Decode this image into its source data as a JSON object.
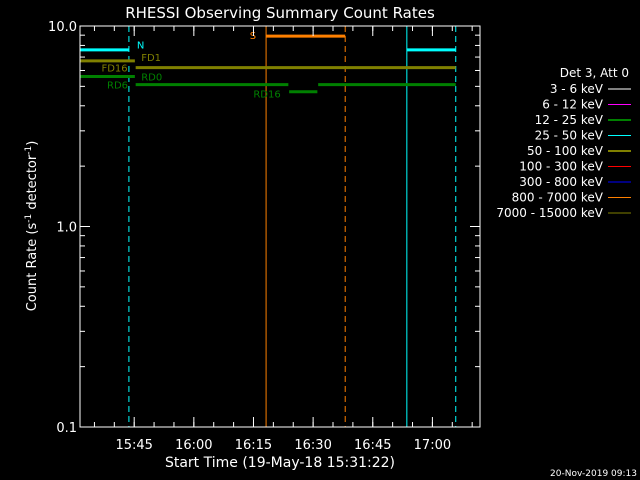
{
  "chart_data": {
    "type": "line",
    "title": "RHESSI Observing Summary Count Rates",
    "xlabel": "Start Time (19-May-18 15:31:22)",
    "ylabel_main": "Count Rate (s",
    "ylabel_sup1": "-1",
    "ylabel_mid": " detector",
    "ylabel_sup2": "-1",
    "ylabel_end": ")",
    "y_scale": "log",
    "ylim": [
      0.1,
      10.0
    ],
    "y_ticks": [
      {
        "value": 0.1,
        "label": "0.1"
      },
      {
        "value": 1.0,
        "label": "1.0"
      },
      {
        "value": 10.0,
        "label": "10.0"
      }
    ],
    "x_units": "minutes since 15:31:22",
    "xlim": [
      0,
      100.6
    ],
    "x_ticks": [
      {
        "value": 13.63,
        "label": "15:45"
      },
      {
        "value": 28.63,
        "label": "16:00"
      },
      {
        "value": 43.63,
        "label": "16:15"
      },
      {
        "value": 58.63,
        "label": "16:30"
      },
      {
        "value": 73.63,
        "label": "16:45"
      },
      {
        "value": 88.63,
        "label": "17:00"
      }
    ],
    "legend_title": "Det 3, Att 0",
    "legend": [
      {
        "label": "3 - 6 keV",
        "color": "#ffffff"
      },
      {
        "label": "6 - 12 keV",
        "color": "#ff00ff"
      },
      {
        "label": "12 - 25 keV",
        "color": "#00ff00"
      },
      {
        "label": "25 - 50 keV",
        "color": "#00ffff"
      },
      {
        "label": "50 - 100 keV",
        "color": "#ffff00"
      },
      {
        "label": "100 - 300 keV",
        "color": "#ff0000"
      },
      {
        "label": "300 - 800 keV",
        "color": "#0000ff"
      },
      {
        "label": "800 - 7000 keV",
        "color": "#ff8000"
      },
      {
        "label": "7000 - 15000 keV",
        "color": "#808000"
      }
    ],
    "flag_segments": [
      {
        "name": "night",
        "color": "#00ffff",
        "y": 7.6,
        "x0": 0.0,
        "x1": 12.3
      },
      {
        "name": "night",
        "color": "#00ffff",
        "y": 7.6,
        "x0": 82.2,
        "x1": 94.5
      },
      {
        "name": "saa",
        "color": "#ff8000",
        "y": 8.9,
        "x0": 46.8,
        "x1": 66.7
      },
      {
        "name": "fd16",
        "color": "#808000",
        "y": 6.7,
        "x0": 0.0,
        "x1": 13.8
      },
      {
        "name": "fd1",
        "color": "#808000",
        "y": 6.2,
        "x0": 14.0,
        "x1": 94.5
      },
      {
        "name": "rd0",
        "color": "#008000",
        "y": 5.6,
        "x0": 0.0,
        "x1": 13.8
      },
      {
        "name": "rd6",
        "color": "#008000",
        "y": 5.1,
        "x0": 14.0,
        "x1": 52.4
      },
      {
        "name": "rd6",
        "color": "#008000",
        "y": 5.1,
        "x0": 59.9,
        "x1": 94.5
      },
      {
        "name": "rd16",
        "color": "#008000",
        "y": 4.7,
        "x0": 52.6,
        "x1": 59.7
      }
    ],
    "vertical_lines": [
      {
        "x": 0.0,
        "color": "#00ffff",
        "dashed": false
      },
      {
        "x": 12.3,
        "color": "#00ffff",
        "dashed": true
      },
      {
        "x": 46.8,
        "color": "#ff8000",
        "dashed": false
      },
      {
        "x": 66.7,
        "color": "#ff8000",
        "dashed": true
      },
      {
        "x": 82.2,
        "color": "#00ffff",
        "dashed": false
      },
      {
        "x": 94.5,
        "color": "#00ffff",
        "dashed": true
      }
    ],
    "flag_labels": [
      {
        "text": "N",
        "color": "#00ffff",
        "x": 14.3,
        "y": 8.1
      },
      {
        "text": "S",
        "color": "#ff8000",
        "x": 42.7,
        "y": 9.0
      },
      {
        "text": "FD1",
        "color": "#808000",
        "x": 15.4,
        "y": 7.0
      },
      {
        "text": "FD16",
        "color": "#808000",
        "x": 5.4,
        "y": 6.2
      },
      {
        "text": "RD0",
        "color": "#008000",
        "x": 15.4,
        "y": 5.6
      },
      {
        "text": "RD6",
        "color": "#008000",
        "x": 6.8,
        "y": 5.1
      },
      {
        "text": "RD16",
        "color": "#008000",
        "x": 43.6,
        "y": 4.6
      }
    ]
  },
  "footer": {
    "timestamp": "20-Nov-2019 09:13"
  },
  "colors": {
    "background": "#000000",
    "axes": "#ffffff"
  }
}
